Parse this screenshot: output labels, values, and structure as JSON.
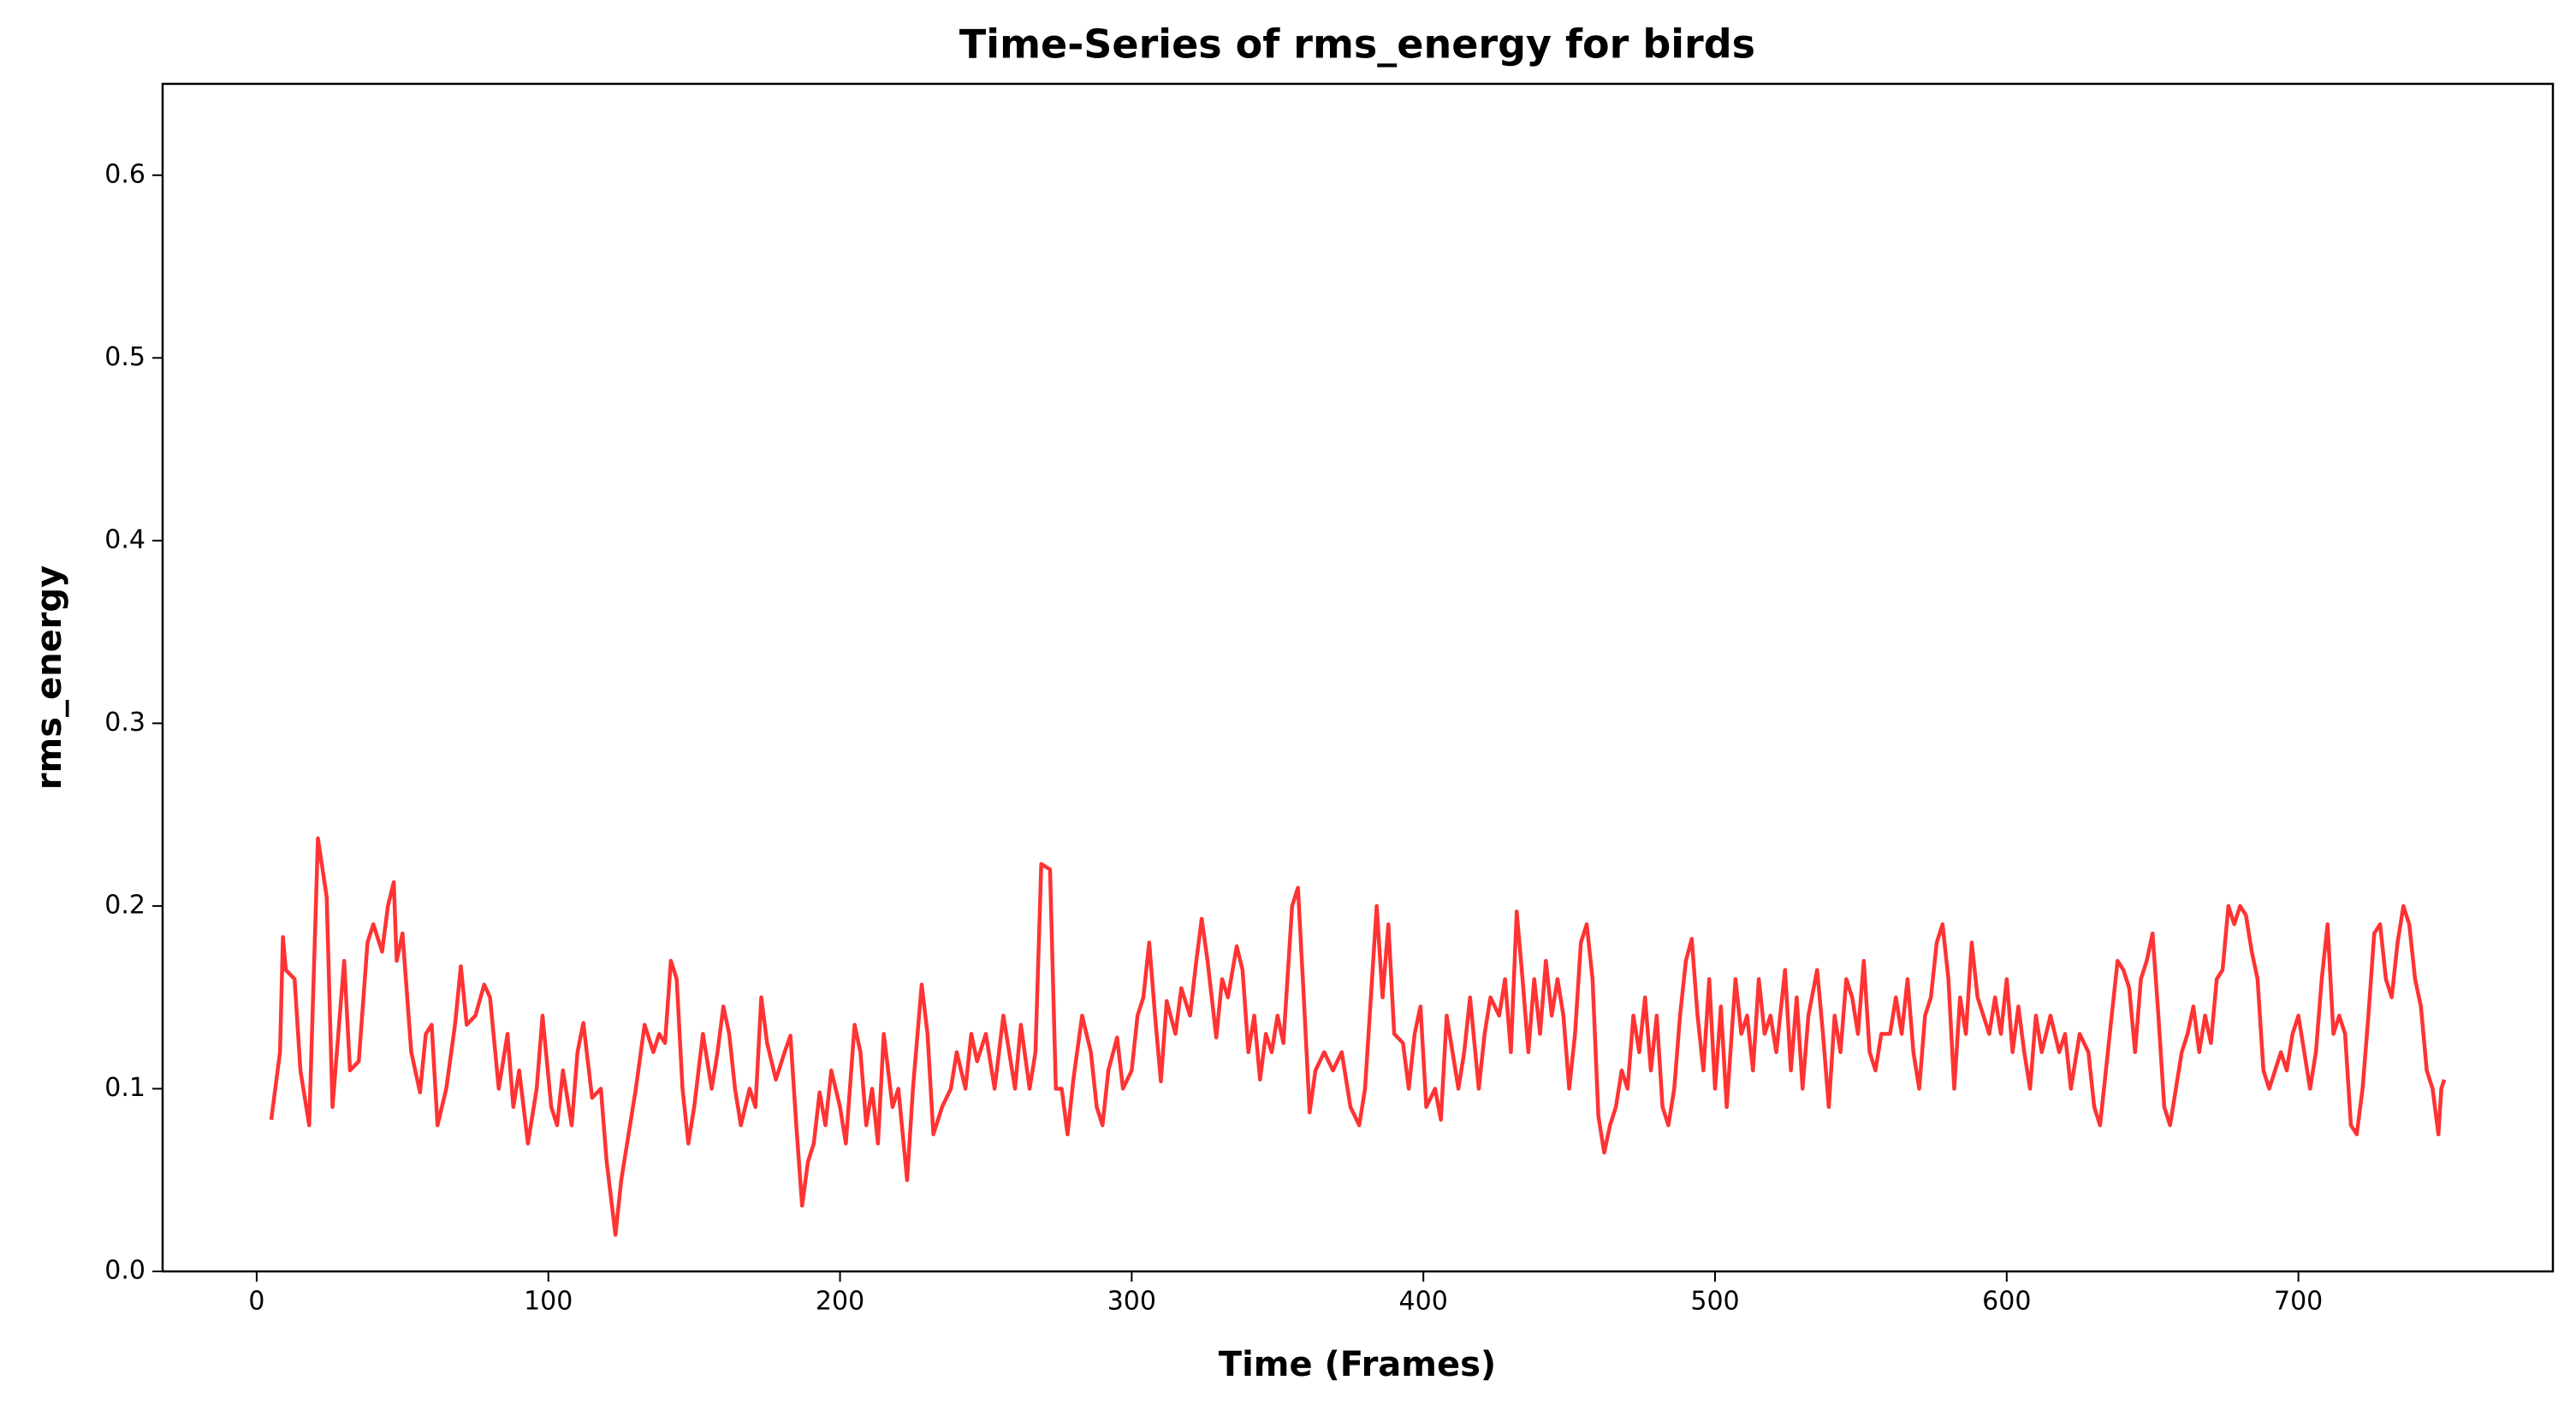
{
  "chart_data": {
    "type": "line",
    "title": "Time-Series of rms_energy for birds",
    "x_label": "Time (Frames)",
    "y_label": "rms_energy",
    "xlim": [
      -32.25,
      787.25
    ],
    "ylim": [
      0,
      0.65
    ],
    "xticks": [
      0,
      100,
      200,
      300,
      400,
      500,
      600,
      700
    ],
    "yticks": [
      {
        "value": 0,
        "label": "0.0"
      },
      0.1,
      0.2,
      0.3,
      0.4,
      0.5,
      0.6
    ],
    "grid": false,
    "series": [
      {
        "name": "rms_energy",
        "color": "#ff3333",
        "x": [
          5,
          8,
          9,
          10,
          13,
          15,
          18,
          21,
          24,
          26,
          28,
          30,
          32,
          35,
          38,
          40,
          43,
          45,
          47,
          48,
          50,
          53,
          56,
          58,
          60,
          62,
          65,
          68,
          70,
          72,
          75,
          78,
          80,
          83,
          86,
          88,
          90,
          93,
          96,
          98,
          101,
          103,
          105,
          108,
          110,
          112,
          115,
          118,
          120,
          123,
          125,
          128,
          130,
          133,
          136,
          138,
          140,
          142,
          144,
          146,
          148,
          150,
          153,
          156,
          158,
          160,
          162,
          164,
          166,
          169,
          171,
          173,
          175,
          178,
          181,
          183,
          185,
          187,
          189,
          191,
          193,
          195,
          197,
          200,
          202,
          205,
          207,
          209,
          211,
          213,
          215,
          218,
          220,
          223,
          225,
          228,
          230,
          232,
          235,
          238,
          240,
          243,
          245,
          247,
          250,
          253,
          256,
          258,
          260,
          262,
          265,
          267,
          269,
          272,
          274,
          276,
          278,
          280,
          283,
          286,
          288,
          290,
          292,
          295,
          297,
          300,
          302,
          304,
          306,
          308,
          310,
          312,
          315,
          317,
          320,
          322,
          324,
          326,
          329,
          331,
          333,
          336,
          338,
          340,
          342,
          344,
          346,
          348,
          350,
          352,
          355,
          357,
          359,
          361,
          363,
          366,
          369,
          372,
          375,
          378,
          380,
          382,
          384,
          386,
          388,
          390,
          393,
          395,
          397,
          399,
          401,
          404,
          406,
          408,
          410,
          412,
          414,
          416,
          419,
          421,
          423,
          426,
          428,
          430,
          432,
          434,
          436,
          438,
          440,
          442,
          444,
          446,
          448,
          450,
          452,
          454,
          456,
          458,
          460,
          462,
          464,
          466,
          468,
          470,
          472,
          474,
          476,
          478,
          480,
          482,
          484,
          486,
          488,
          490,
          492,
          494,
          496,
          498,
          500,
          502,
          504,
          507,
          509,
          511,
          513,
          515,
          517,
          519,
          521,
          524,
          526,
          528,
          530,
          532,
          535,
          537,
          539,
          541,
          543,
          545,
          547,
          549,
          551,
          553,
          555,
          557,
          560,
          562,
          564,
          566,
          568,
          570,
          572,
          574,
          576,
          578,
          580,
          582,
          584,
          586,
          588,
          590,
          592,
          594,
          596,
          598,
          600,
          602,
          604,
          606,
          608,
          610,
          612,
          615,
          618,
          620,
          622,
          625,
          628,
          630,
          632,
          634,
          636,
          638,
          640,
          642,
          644,
          646,
          648,
          650,
          652,
          654,
          656,
          658,
          660,
          662,
          664,
          666,
          668,
          670,
          672,
          674,
          676,
          678,
          680,
          682,
          684,
          686,
          688,
          690,
          692,
          694,
          696,
          698,
          700,
          702,
          704,
          706,
          708,
          710,
          712,
          714,
          716,
          718,
          720,
          722,
          724,
          726,
          728,
          730,
          732,
          734,
          736,
          738,
          740,
          742,
          744,
          746,
          748,
          749,
          750
        ],
        "values": [
          0.083,
          0.12,
          0.183,
          0.165,
          0.16,
          0.11,
          0.08,
          0.237,
          0.205,
          0.09,
          0.13,
          0.17,
          0.11,
          0.115,
          0.18,
          0.19,
          0.175,
          0.2,
          0.213,
          0.17,
          0.185,
          0.12,
          0.098,
          0.13,
          0.135,
          0.08,
          0.1,
          0.135,
          0.167,
          0.135,
          0.14,
          0.157,
          0.15,
          0.1,
          0.13,
          0.09,
          0.11,
          0.07,
          0.1,
          0.14,
          0.09,
          0.08,
          0.11,
          0.08,
          0.12,
          0.136,
          0.095,
          0.1,
          0.06,
          0.02,
          0.05,
          0.08,
          0.1,
          0.135,
          0.12,
          0.13,
          0.125,
          0.17,
          0.16,
          0.1,
          0.07,
          0.09,
          0.13,
          0.1,
          0.12,
          0.145,
          0.13,
          0.1,
          0.08,
          0.1,
          0.09,
          0.15,
          0.125,
          0.105,
          0.12,
          0.129,
          0.08,
          0.036,
          0.06,
          0.07,
          0.098,
          0.08,
          0.11,
          0.09,
          0.07,
          0.135,
          0.12,
          0.08,
          0.1,
          0.07,
          0.13,
          0.09,
          0.1,
          0.05,
          0.1,
          0.157,
          0.13,
          0.075,
          0.09,
          0.1,
          0.12,
          0.1,
          0.13,
          0.115,
          0.13,
          0.1,
          0.14,
          0.12,
          0.1,
          0.135,
          0.1,
          0.12,
          0.223,
          0.22,
          0.1,
          0.1,
          0.075,
          0.105,
          0.14,
          0.12,
          0.09,
          0.08,
          0.11,
          0.128,
          0.1,
          0.11,
          0.14,
          0.15,
          0.18,
          0.14,
          0.104,
          0.148,
          0.13,
          0.155,
          0.14,
          0.168,
          0.193,
          0.17,
          0.128,
          0.16,
          0.15,
          0.178,
          0.165,
          0.12,
          0.14,
          0.105,
          0.13,
          0.12,
          0.14,
          0.125,
          0.2,
          0.21,
          0.15,
          0.087,
          0.11,
          0.12,
          0.11,
          0.12,
          0.09,
          0.08,
          0.1,
          0.15,
          0.2,
          0.15,
          0.19,
          0.13,
          0.125,
          0.1,
          0.13,
          0.145,
          0.09,
          0.1,
          0.083,
          0.14,
          0.12,
          0.1,
          0.12,
          0.15,
          0.1,
          0.13,
          0.15,
          0.14,
          0.16,
          0.12,
          0.197,
          0.16,
          0.12,
          0.16,
          0.13,
          0.17,
          0.14,
          0.16,
          0.14,
          0.1,
          0.13,
          0.18,
          0.19,
          0.16,
          0.085,
          0.065,
          0.08,
          0.09,
          0.11,
          0.1,
          0.14,
          0.12,
          0.15,
          0.11,
          0.14,
          0.09,
          0.08,
          0.1,
          0.14,
          0.17,
          0.182,
          0.14,
          0.11,
          0.16,
          0.1,
          0.145,
          0.09,
          0.16,
          0.13,
          0.14,
          0.11,
          0.16,
          0.13,
          0.14,
          0.12,
          0.165,
          0.11,
          0.15,
          0.1,
          0.14,
          0.165,
          0.13,
          0.09,
          0.14,
          0.12,
          0.16,
          0.15,
          0.13,
          0.17,
          0.12,
          0.11,
          0.13,
          0.13,
          0.15,
          0.13,
          0.16,
          0.12,
          0.1,
          0.14,
          0.15,
          0.18,
          0.19,
          0.16,
          0.1,
          0.15,
          0.13,
          0.18,
          0.15,
          0.14,
          0.13,
          0.15,
          0.13,
          0.16,
          0.12,
          0.145,
          0.12,
          0.1,
          0.14,
          0.12,
          0.14,
          0.12,
          0.13,
          0.1,
          0.13,
          0.12,
          0.09,
          0.08,
          0.11,
          0.14,
          0.17,
          0.165,
          0.155,
          0.12,
          0.16,
          0.17,
          0.185,
          0.14,
          0.09,
          0.08,
          0.1,
          0.12,
          0.13,
          0.145,
          0.12,
          0.14,
          0.125,
          0.16,
          0.165,
          0.2,
          0.19,
          0.2,
          0.195,
          0.175,
          0.16,
          0.11,
          0.1,
          0.11,
          0.12,
          0.11,
          0.13,
          0.14,
          0.12,
          0.1,
          0.12,
          0.16,
          0.19,
          0.13,
          0.14,
          0.13,
          0.08,
          0.075,
          0.1,
          0.14,
          0.185,
          0.19,
          0.16,
          0.15,
          0.18,
          0.2,
          0.19,
          0.16,
          0.145,
          0.11,
          0.1,
          0.075,
          0.1,
          0.105
        ]
      }
    ]
  }
}
